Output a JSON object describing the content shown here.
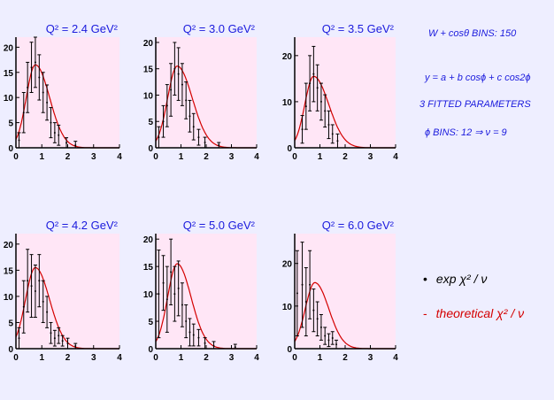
{
  "colors": {
    "background": "#eeeeff",
    "plot_background": "#ffe6f6",
    "title_text": "#1a1add",
    "fit_curve": "#d40000",
    "data_points": "#000000",
    "side_text": "#1a1add",
    "theory_text": "#d40000"
  },
  "side_panel": {
    "header": "W + cosθ  BINS: 150",
    "formula": "y = a + b cosϕ + c cos2ϕ",
    "params": "3 FITTED PARAMETERS",
    "bins": "ϕ BINS:  12    ⇒   ν = 9"
  },
  "legend": {
    "exp_marker": "•",
    "exp_label": "exp   χ² / ν",
    "theory_marker": "-",
    "theory_label": "theoretical   χ² / ν"
  },
  "chart_data": [
    {
      "type": "scatter",
      "title": "Q² = 2.4 GeV²",
      "xlim": [
        0,
        4
      ],
      "ylim": [
        0,
        22
      ],
      "xticks": [
        "0",
        "1",
        "2",
        "3",
        "4"
      ],
      "yticks": [
        {
          "v": 0,
          "t": "0"
        },
        {
          "v": 5,
          "t": "5"
        },
        {
          "v": 10,
          "t": "10"
        },
        {
          "v": 15,
          "t": "15"
        },
        {
          "v": 20,
          "t": "20"
        }
      ],
      "points": [
        {
          "x": 0.12,
          "y": 1.5,
          "err": 1.5
        },
        {
          "x": 0.3,
          "y": 7,
          "err": 4
        },
        {
          "x": 0.45,
          "y": 12,
          "err": 5
        },
        {
          "x": 0.6,
          "y": 16,
          "err": 5
        },
        {
          "x": 0.75,
          "y": 17,
          "err": 5
        },
        {
          "x": 0.9,
          "y": 14,
          "err": 4.5
        },
        {
          "x": 1.05,
          "y": 11,
          "err": 4
        },
        {
          "x": 1.2,
          "y": 9,
          "err": 3.5
        },
        {
          "x": 1.35,
          "y": 5,
          "err": 3
        },
        {
          "x": 1.5,
          "y": 3,
          "err": 2
        },
        {
          "x": 1.65,
          "y": 2.5,
          "err": 2
        },
        {
          "x": 1.95,
          "y": 1,
          "err": 1
        },
        {
          "x": 2.3,
          "y": 0.5,
          "err": 0.8
        }
      ],
      "fit": {
        "peak_x": 0.75,
        "peak_y": 16.5,
        "rise": 0.35,
        "fall": 0.55
      }
    },
    {
      "type": "scatter",
      "title": "Q² = 3.0 GeV²",
      "xlim": [
        0,
        4
      ],
      "ylim": [
        0,
        21
      ],
      "xticks": [
        "0",
        "1",
        "2",
        "3",
        "4"
      ],
      "yticks": [
        {
          "v": 0,
          "t": "0"
        },
        {
          "v": 5,
          "t": "5"
        },
        {
          "v": 10,
          "t": "10"
        },
        {
          "v": 15,
          "t": "15"
        },
        {
          "v": 20,
          "t": "20"
        }
      ],
      "points": [
        {
          "x": 0.12,
          "y": 2,
          "err": 2
        },
        {
          "x": 0.3,
          "y": 5,
          "err": 3
        },
        {
          "x": 0.45,
          "y": 8,
          "err": 4
        },
        {
          "x": 0.6,
          "y": 11,
          "err": 5
        },
        {
          "x": 0.75,
          "y": 15,
          "err": 5
        },
        {
          "x": 0.9,
          "y": 14,
          "err": 5
        },
        {
          "x": 1.05,
          "y": 12,
          "err": 4
        },
        {
          "x": 1.2,
          "y": 9,
          "err": 3.5
        },
        {
          "x": 1.35,
          "y": 6,
          "err": 3
        },
        {
          "x": 1.5,
          "y": 4,
          "err": 2.5
        },
        {
          "x": 1.7,
          "y": 2,
          "err": 1.5
        },
        {
          "x": 1.95,
          "y": 1,
          "err": 1
        },
        {
          "x": 2.5,
          "y": 0.5,
          "err": 0.5
        }
      ],
      "fit": {
        "peak_x": 0.85,
        "peak_y": 15.5,
        "rise": 0.38,
        "fall": 0.6
      }
    },
    {
      "type": "scatter",
      "title": "Q² = 3.5 GeV²",
      "xlim": [
        0,
        4
      ],
      "ylim": [
        0,
        24
      ],
      "xticks": [
        "0",
        "1",
        "2",
        "3",
        "4"
      ],
      "yticks": [
        {
          "v": 0,
          "t": "0"
        },
        {
          "v": 10,
          "t": "10"
        },
        {
          "v": 20,
          "t": "20"
        }
      ],
      "points": [
        {
          "x": 0.3,
          "y": 4,
          "err": 3
        },
        {
          "x": 0.45,
          "y": 9,
          "err": 5
        },
        {
          "x": 0.6,
          "y": 14,
          "err": 6
        },
        {
          "x": 0.75,
          "y": 16,
          "err": 6
        },
        {
          "x": 0.9,
          "y": 13,
          "err": 5
        },
        {
          "x": 1.05,
          "y": 10,
          "err": 4
        },
        {
          "x": 1.2,
          "y": 8,
          "err": 3.5
        },
        {
          "x": 1.35,
          "y": 5,
          "err": 3
        },
        {
          "x": 1.5,
          "y": 3,
          "err": 2
        },
        {
          "x": 1.7,
          "y": 1.5,
          "err": 1.5
        }
      ],
      "fit": {
        "peak_x": 0.75,
        "peak_y": 15.5,
        "rise": 0.35,
        "fall": 0.6
      }
    },
    {
      "type": "scatter",
      "title": "Q² = 4.2 GeV²",
      "xlim": [
        0,
        4
      ],
      "ylim": [
        0,
        22
      ],
      "xticks": [
        "0",
        "1",
        "2",
        "3",
        "4"
      ],
      "yticks": [
        {
          "v": 0,
          "t": "0"
        },
        {
          "v": 5,
          "t": "5"
        },
        {
          "v": 10,
          "t": "10"
        },
        {
          "v": 15,
          "t": "15"
        },
        {
          "v": 20,
          "t": "20"
        }
      ],
      "points": [
        {
          "x": 0.12,
          "y": 2,
          "err": 2
        },
        {
          "x": 0.3,
          "y": 8,
          "err": 5
        },
        {
          "x": 0.45,
          "y": 13,
          "err": 6
        },
        {
          "x": 0.6,
          "y": 12,
          "err": 6
        },
        {
          "x": 0.75,
          "y": 11,
          "err": 5
        },
        {
          "x": 0.9,
          "y": 13,
          "err": 5
        },
        {
          "x": 1.05,
          "y": 9,
          "err": 4
        },
        {
          "x": 1.2,
          "y": 7,
          "err": 3
        },
        {
          "x": 1.35,
          "y": 3,
          "err": 2
        },
        {
          "x": 1.5,
          "y": 2,
          "err": 1.5
        },
        {
          "x": 1.65,
          "y": 2.5,
          "err": 1.5
        },
        {
          "x": 1.8,
          "y": 1.5,
          "err": 1
        },
        {
          "x": 2.0,
          "y": 1,
          "err": 1
        },
        {
          "x": 2.3,
          "y": 0.5,
          "err": 0.5
        }
      ],
      "fit": {
        "peak_x": 0.75,
        "peak_y": 15.5,
        "rise": 0.38,
        "fall": 0.55
      }
    },
    {
      "type": "scatter",
      "title": "Q² = 5.0 GeV²",
      "xlim": [
        0,
        4
      ],
      "ylim": [
        0,
        21
      ],
      "xticks": [
        "0",
        "1",
        "2",
        "3",
        "4"
      ],
      "yticks": [
        {
          "v": 0,
          "t": "0"
        },
        {
          "v": 5,
          "t": "5"
        },
        {
          "v": 10,
          "t": "10"
        },
        {
          "v": 15,
          "t": "15"
        },
        {
          "v": 20,
          "t": "20"
        }
      ],
      "points": [
        {
          "x": 0.12,
          "y": 10,
          "err": 8
        },
        {
          "x": 0.3,
          "y": 12,
          "err": 5
        },
        {
          "x": 0.45,
          "y": 9,
          "err": 6
        },
        {
          "x": 0.6,
          "y": 14,
          "err": 6
        },
        {
          "x": 0.75,
          "y": 10,
          "err": 5
        },
        {
          "x": 0.9,
          "y": 11,
          "err": 5
        },
        {
          "x": 1.05,
          "y": 8,
          "err": 4
        },
        {
          "x": 1.2,
          "y": 5,
          "err": 3
        },
        {
          "x": 1.35,
          "y": 3,
          "err": 2.5
        },
        {
          "x": 1.5,
          "y": 2.5,
          "err": 2
        },
        {
          "x": 1.7,
          "y": 2,
          "err": 1.5
        },
        {
          "x": 1.95,
          "y": 1,
          "err": 1
        },
        {
          "x": 2.3,
          "y": 0.5,
          "err": 0.8
        },
        {
          "x": 3.15,
          "y": 0.3,
          "err": 0.5
        }
      ],
      "fit": {
        "peak_x": 0.85,
        "peak_y": 15.5,
        "rise": 0.38,
        "fall": 0.55
      }
    },
    {
      "type": "scatter",
      "title": "Q² = 6.0 GeV²",
      "xlim": [
        0,
        4
      ],
      "ylim": [
        0,
        27
      ],
      "xticks": [
        "0",
        "1",
        "2",
        "3",
        "4"
      ],
      "yticks": [
        {
          "v": 0,
          "t": "0"
        },
        {
          "v": 10,
          "t": "10"
        },
        {
          "v": 20,
          "t": "20"
        }
      ],
      "points": [
        {
          "x": 0.1,
          "y": 13,
          "err": 10
        },
        {
          "x": 0.3,
          "y": 15,
          "err": 10
        },
        {
          "x": 0.45,
          "y": 11,
          "err": 8
        },
        {
          "x": 0.6,
          "y": 15,
          "err": 8
        },
        {
          "x": 0.75,
          "y": 9,
          "err": 5
        },
        {
          "x": 0.9,
          "y": 7,
          "err": 4
        },
        {
          "x": 1.05,
          "y": 5,
          "err": 3
        },
        {
          "x": 1.2,
          "y": 3,
          "err": 2
        },
        {
          "x": 1.35,
          "y": 2,
          "err": 1.5
        },
        {
          "x": 1.5,
          "y": 2.5,
          "err": 1.5
        },
        {
          "x": 1.65,
          "y": 1,
          "err": 1
        }
      ],
      "fit": {
        "peak_x": 0.8,
        "peak_y": 15.5,
        "rise": 0.38,
        "fall": 0.55
      }
    }
  ]
}
